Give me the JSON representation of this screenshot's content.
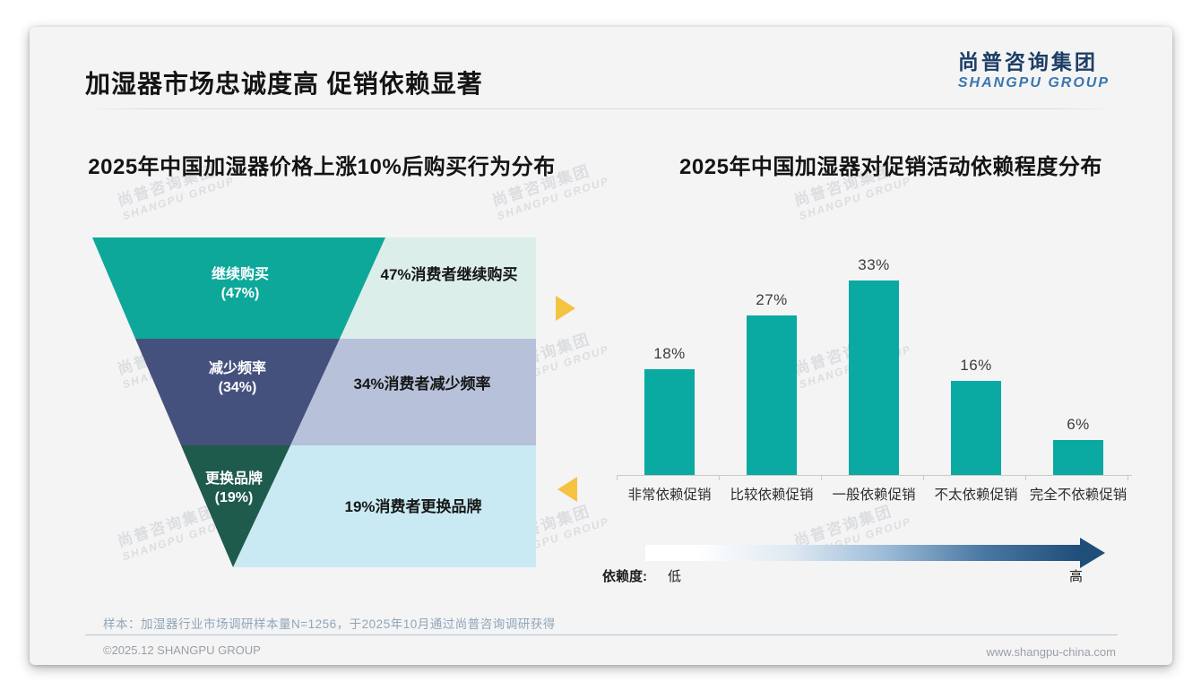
{
  "header": {
    "title": "加湿器市场忠诚度高 促销依赖显著",
    "logo_cn": "尚普咨询集团",
    "logo_en": "SHANGPU GROUP"
  },
  "watermark": {
    "line1": "尚普咨询集团",
    "line2": "SHANGPU GROUP"
  },
  "funnel": {
    "segments": [
      {
        "label": "继续购买",
        "value_display": "(47%)",
        "note": "47%消费者继续购买"
      },
      {
        "label": "减少频率",
        "value_display": "(34%)",
        "note": "34%消费者减少频率"
      },
      {
        "label": "更换品牌",
        "value_display": "(19%)",
        "note": "19%消费者更换品牌"
      }
    ]
  },
  "chart_data": [
    {
      "type": "funnel",
      "title": "2025年中国加湿器价格上涨10%后购买行为分布",
      "categories": [
        "继续购买",
        "减少频率",
        "更换品牌"
      ],
      "values": [
        47,
        34,
        19
      ],
      "value_suffix": "%",
      "annotations": [
        "47%消费者继续购买",
        "34%消费者减少频率",
        "19%消费者更换品牌"
      ]
    },
    {
      "type": "bar",
      "title": "2025年中国加湿器对促销活动依赖程度分布",
      "categories": [
        "非常依赖促销",
        "比较依赖促销",
        "一般依赖促销",
        "不太依赖促销",
        "完全不依赖促销"
      ],
      "values": [
        18,
        27,
        33,
        16,
        6
      ],
      "value_suffix": "%",
      "ylim": [
        0,
        35
      ],
      "grid": false,
      "legend": "none"
    }
  ],
  "dependence_scale": {
    "label": "依赖度:",
    "low": "低",
    "high": "高"
  },
  "footnote": "样本：加湿器行业市场调研样本量N=1256，于2025年10月通过尚普咨询调研获得",
  "footer": {
    "copyright": "©2025.12 SHANGPU GROUP",
    "website": "www.shangpu-china.com"
  },
  "colors": {
    "bar_teal": "#0aa9a1",
    "funnel_teal": "#0ea89a",
    "funnel_navy": "#45517d",
    "funnel_green": "#1e5b4c",
    "panel_mint": "#dceeea",
    "panel_lavender": "#b7c1d9",
    "panel_cyan": "#c9eaf2",
    "pointer_amber": "#f5c242",
    "gradient_end_navy": "#1f4e79",
    "logo_navy": "#1d3e66",
    "logo_blue": "#3a76ae"
  }
}
